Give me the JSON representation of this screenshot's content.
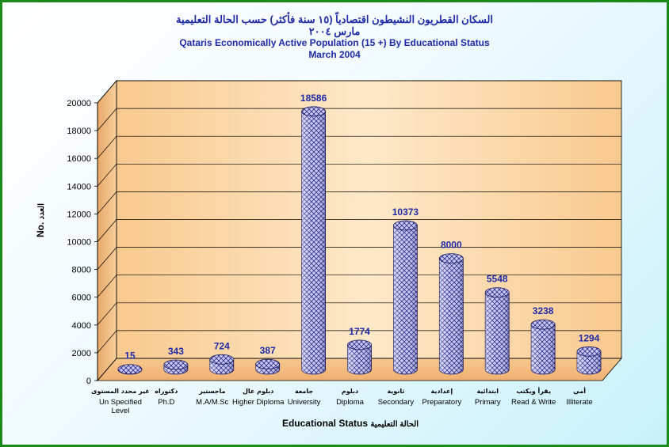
{
  "chart_data": {
    "type": "bar",
    "title_ar": "السكان القطريون النشيطون اقتصادياً (١٥ سنة فأكثر) حسب الحالة التعليمية",
    "date_ar": "مارس ٢٠٠٤",
    "title": "Qataris Economically Active Population (15 +) By Educational Status",
    "subtitle": "March 2004",
    "xlabel": "Educational Status",
    "xlabel_ar": "الحالة التعليمية",
    "ylabel": "No.",
    "ylabel_ar": "العدد",
    "ylim": [
      0,
      20000
    ],
    "yticks": [
      "0",
      "2000",
      "4000",
      "6000",
      "8000",
      "10000",
      "12000",
      "14000",
      "16000",
      "18000",
      "20000"
    ],
    "categories": [
      {
        "ar": "غير محدد المستوى",
        "en": "Un Specified Level"
      },
      {
        "ar": "دكتوراه",
        "en": "Ph.D"
      },
      {
        "ar": "ماجستير",
        "en": "M.A/M.Sc"
      },
      {
        "ar": "دبلوم عال",
        "en": "Higher Diploma"
      },
      {
        "ar": "جامعة",
        "en": "University"
      },
      {
        "ar": "دبلوم",
        "en": "Diploma"
      },
      {
        "ar": "ثانوية",
        "en": "Secondary"
      },
      {
        "ar": "إعدادية",
        "en": "Preparatory"
      },
      {
        "ar": "ابتدائية",
        "en": "Primary"
      },
      {
        "ar": "يقرأ ويكتب",
        "en": "Read & Write"
      },
      {
        "ar": "أمي",
        "en": "Illiterate"
      }
    ],
    "values": [
      15,
      343,
      724,
      387,
      18586,
      1774,
      10373,
      8000,
      5548,
      3238,
      1294
    ],
    "grid": true,
    "colors": {
      "bar": "#c8c8f0",
      "hatch": "#2a2a8a",
      "value_label": "#1f2aa8",
      "wall": "#fce6c4"
    }
  }
}
